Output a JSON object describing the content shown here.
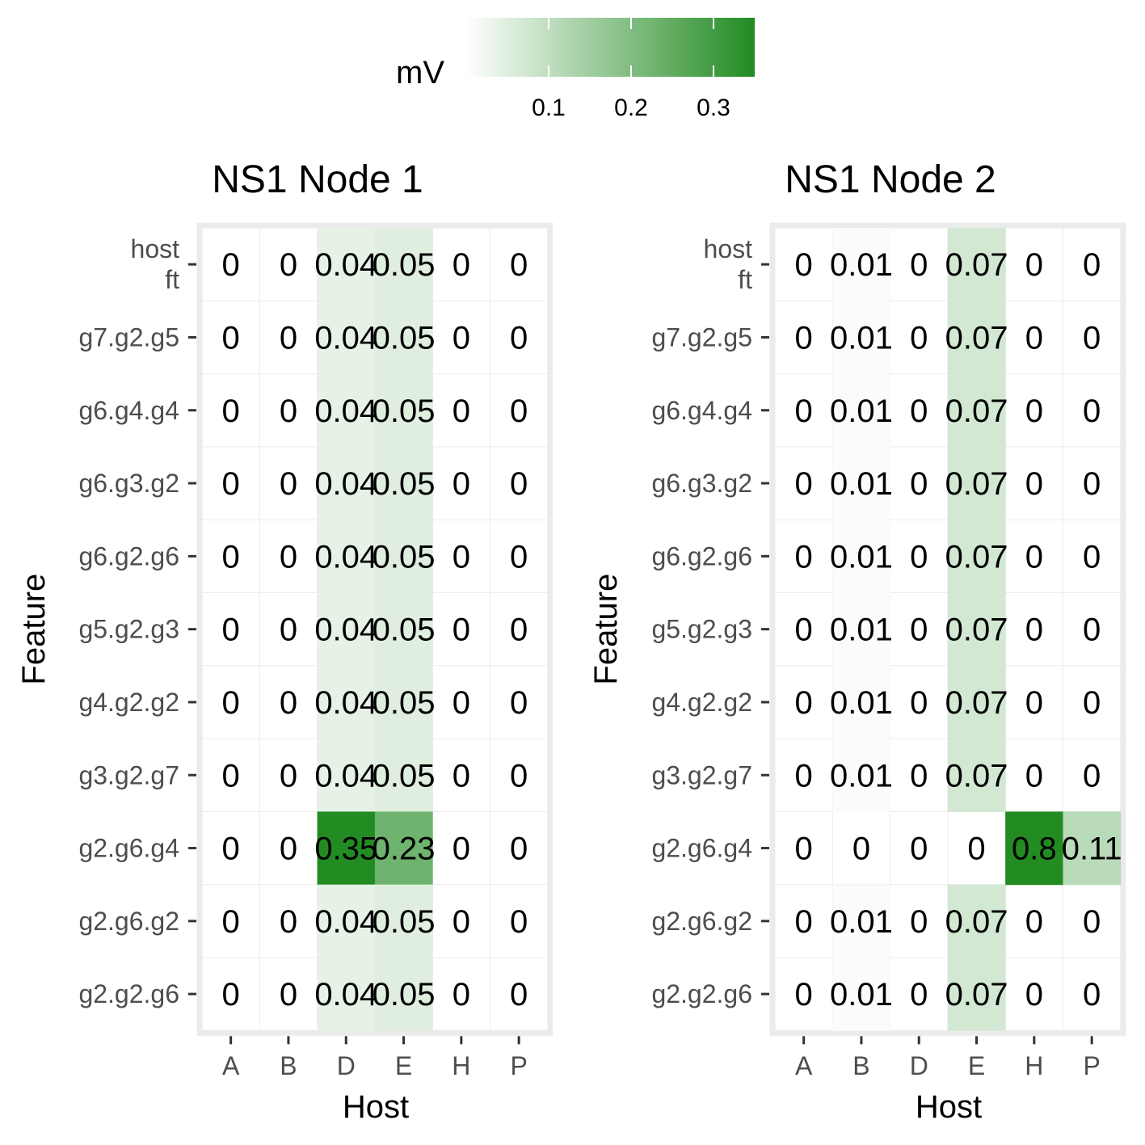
{
  "chart_data": [
    {
      "type": "heatmap",
      "title": "NS1 Node 1",
      "xlabel": "Host",
      "ylabel": "Feature",
      "x": [
        "A",
        "B",
        "D",
        "E",
        "H",
        "P"
      ],
      "y": [
        "host\nft",
        "g7.g2.g5",
        "g6.g4.g4",
        "g6.g3.g2",
        "g6.g2.g6",
        "g5.g2.g3",
        "g4.g2.g2",
        "g3.g2.g7",
        "g2.g6.g4",
        "g2.g6.g2",
        "g2.g2.g6"
      ],
      "values": [
        [
          0,
          0,
          0.04,
          0.05,
          0,
          0
        ],
        [
          0,
          0,
          0.04,
          0.05,
          0,
          0
        ],
        [
          0,
          0,
          0.04,
          0.05,
          0,
          0
        ],
        [
          0,
          0,
          0.04,
          0.05,
          0,
          0
        ],
        [
          0,
          0,
          0.04,
          0.05,
          0,
          0
        ],
        [
          0,
          0,
          0.04,
          0.05,
          0,
          0
        ],
        [
          0,
          0,
          0.04,
          0.05,
          0,
          0
        ],
        [
          0,
          0,
          0.04,
          0.05,
          0,
          0
        ],
        [
          0,
          0,
          0.35,
          0.23,
          0,
          0
        ],
        [
          0,
          0,
          0.04,
          0.05,
          0,
          0
        ],
        [
          0,
          0,
          0.04,
          0.05,
          0,
          0
        ]
      ]
    },
    {
      "type": "heatmap",
      "title": "NS1 Node 2",
      "xlabel": "Host",
      "ylabel": "Feature",
      "x": [
        "A",
        "B",
        "D",
        "E",
        "H",
        "P"
      ],
      "y": [
        "host\nft",
        "g7.g2.g5",
        "g6.g4.g4",
        "g6.g3.g2",
        "g6.g2.g6",
        "g5.g2.g3",
        "g4.g2.g2",
        "g3.g2.g7",
        "g2.g6.g4",
        "g2.g6.g2",
        "g2.g2.g6"
      ],
      "values": [
        [
          0,
          0.01,
          0,
          0.07,
          0,
          0
        ],
        [
          0,
          0.01,
          0,
          0.07,
          0,
          0
        ],
        [
          0,
          0.01,
          0,
          0.07,
          0,
          0
        ],
        [
          0,
          0.01,
          0,
          0.07,
          0,
          0
        ],
        [
          0,
          0.01,
          0,
          0.07,
          0,
          0
        ],
        [
          0,
          0.01,
          0,
          0.07,
          0,
          0
        ],
        [
          0,
          0.01,
          0,
          0.07,
          0,
          0
        ],
        [
          0,
          0.01,
          0,
          0.07,
          0,
          0
        ],
        [
          0,
          0,
          0,
          0,
          0.8,
          0.11
        ],
        [
          0,
          0.01,
          0,
          0.07,
          0,
          0
        ],
        [
          0,
          0.01,
          0,
          0.07,
          0,
          0
        ]
      ]
    }
  ],
  "legend": {
    "title": "mV",
    "placement": "top",
    "range": [
      0,
      0.35
    ],
    "ticks": [
      0.1,
      0.2,
      0.3
    ],
    "tick_labels": [
      "0.1",
      "0.2",
      "0.3"
    ],
    "low_color": "#ffffff",
    "high_color": "#228b22"
  },
  "colors": {
    "panel_border": "#ebebeb",
    "grid": "#ebebeb",
    "tick_text": "#4d4d4d"
  }
}
